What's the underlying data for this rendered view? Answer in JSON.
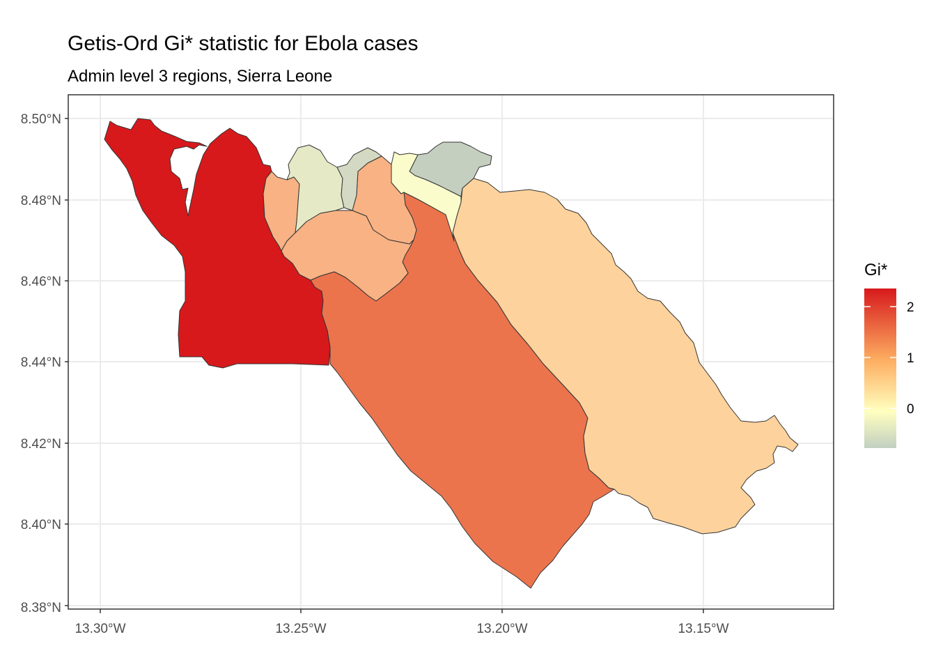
{
  "title": "Getis-Ord Gi* statistic for Ebola cases",
  "subtitle": "Admin level 3 regions, Sierra Leone",
  "axes": {
    "x_ticks": [
      "13.30°W",
      "13.25°W",
      "13.20°W",
      "13.15°W"
    ],
    "y_ticks": [
      "8.50°N",
      "8.48°N",
      "8.46°N",
      "8.44°N",
      "8.42°N",
      "8.40°N",
      "8.38°N"
    ]
  },
  "legend": {
    "title": "Gi*",
    "ticks": [
      "2",
      "1",
      "0"
    ],
    "colors": [
      "#d7191c",
      "#fdae61",
      "#ffffbf",
      "#c2cfc1"
    ]
  },
  "chart_data": {
    "type": "choropleth",
    "title": "Getis-Ord Gi* statistic for Ebola cases",
    "subtitle": "Admin level 3 regions, Sierra Leone",
    "xlim": [
      -13.308,
      -13.118
    ],
    "ylim": [
      8.38,
      8.506
    ],
    "legend_range": [
      -0.7,
      2.4
    ],
    "regions": [
      {
        "gi": 2.35,
        "color": "#d7191c"
      },
      {
        "gi": 1.5,
        "color": "#eb744d"
      },
      {
        "gi": 0.75,
        "color": "#fdd29c"
      },
      {
        "gi": 1.0,
        "color": "#f8b284"
      },
      {
        "gi": 0.95,
        "color": "#f8b284"
      },
      {
        "gi": 1.05,
        "color": "#f8b284"
      },
      {
        "gi": -0.35,
        "color": "#e6e9c6"
      },
      {
        "gi": -0.6,
        "color": "#d3d9c2"
      },
      {
        "gi": -0.75,
        "color": "#c5cfc0"
      },
      {
        "gi": 0.0,
        "color": "#fafccb"
      }
    ]
  }
}
